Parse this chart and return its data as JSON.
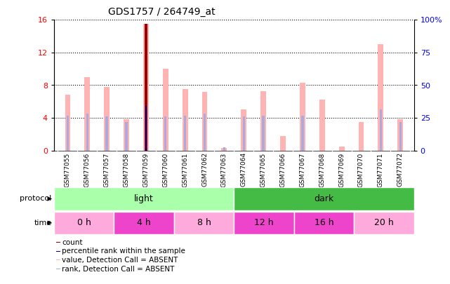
{
  "title": "GDS1757 / 264749_at",
  "samples": [
    "GSM77055",
    "GSM77056",
    "GSM77057",
    "GSM77058",
    "GSM77059",
    "GSM77060",
    "GSM77061",
    "GSM77062",
    "GSM77063",
    "GSM77064",
    "GSM77065",
    "GSM77066",
    "GSM77067",
    "GSM77068",
    "GSM77069",
    "GSM77070",
    "GSM77071",
    "GSM77072"
  ],
  "value_absent": [
    6.8,
    9.0,
    7.8,
    3.8,
    15.5,
    10.0,
    7.5,
    7.2,
    0.3,
    5.0,
    7.3,
    1.8,
    8.3,
    6.2,
    0.5,
    3.5,
    13.0,
    3.8
  ],
  "rank_absent": [
    4.3,
    4.5,
    4.2,
    3.5,
    null,
    4.2,
    4.3,
    4.5,
    0.4,
    4.2,
    4.3,
    null,
    4.3,
    null,
    null,
    null,
    5.0,
    3.5
  ],
  "count_value": [
    null,
    null,
    null,
    null,
    15.5,
    null,
    null,
    null,
    null,
    null,
    null,
    null,
    null,
    null,
    null,
    null,
    null,
    null
  ],
  "rank_present": [
    null,
    null,
    null,
    null,
    5.5,
    null,
    null,
    null,
    null,
    null,
    null,
    null,
    null,
    null,
    null,
    null,
    null,
    null
  ],
  "ylim_left": [
    0,
    16
  ],
  "ylim_right": [
    0,
    100
  ],
  "yticks_left": [
    0,
    4,
    8,
    12,
    16
  ],
  "yticks_right": [
    0,
    25,
    50,
    75,
    100
  ],
  "color_count": "#990000",
  "color_rank_present": "#000099",
  "color_value_absent": "#FFB3B3",
  "color_rank_absent": "#AAAADD",
  "protocol_groups": [
    {
      "label": "light",
      "start": 0,
      "end": 9,
      "color": "#AAFFAA"
    },
    {
      "label": "dark",
      "start": 9,
      "end": 18,
      "color": "#44BB44"
    }
  ],
  "time_groups": [
    {
      "label": "0 h",
      "start": 0,
      "end": 3,
      "color": "#FFAADD"
    },
    {
      "label": "4 h",
      "start": 3,
      "end": 6,
      "color": "#EE44CC"
    },
    {
      "label": "8 h",
      "start": 6,
      "end": 9,
      "color": "#FFAADD"
    },
    {
      "label": "12 h",
      "start": 9,
      "end": 12,
      "color": "#EE44CC"
    },
    {
      "label": "16 h",
      "start": 12,
      "end": 15,
      "color": "#EE44CC"
    },
    {
      "label": "20 h",
      "start": 15,
      "end": 18,
      "color": "#FFAADD"
    }
  ],
  "bg_color": "#FFFFFF",
  "plot_bg": "#FFFFFF",
  "tick_bg": "#DDDDDD",
  "grid_color": "#000000"
}
